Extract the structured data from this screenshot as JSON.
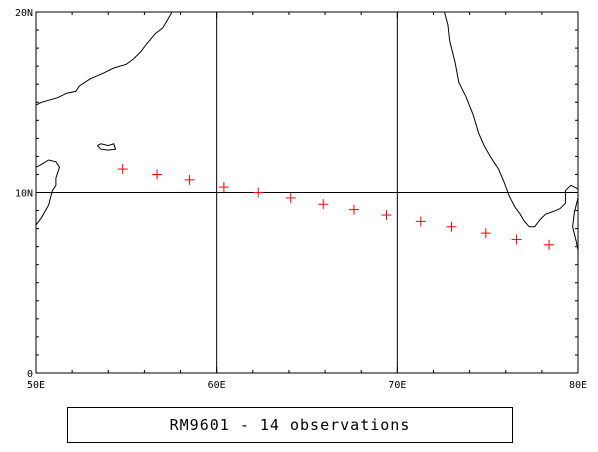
{
  "caption": "RM9601 - 14 observations",
  "chart_data": {
    "type": "scatter",
    "projection": "lon-lat",
    "xlim": [
      50,
      80
    ],
    "ylim": [
      0,
      20
    ],
    "x_ticks": [
      50,
      60,
      70,
      80
    ],
    "x_tick_labels": [
      "50E",
      "60E",
      "70E",
      "80E"
    ],
    "y_ticks": [
      0,
      10,
      20
    ],
    "y_tick_labels": [
      "0",
      "10N",
      "20N"
    ],
    "grid": true,
    "grid_lines": {
      "lon": [
        60,
        70
      ],
      "lat": [
        10
      ]
    },
    "marker": "plus",
    "marker_color": "#ff0000",
    "coastline_color": "#000000",
    "points": [
      {
        "lon": 54.8,
        "lat": 11.3
      },
      {
        "lon": 56.7,
        "lat": 11.0
      },
      {
        "lon": 58.5,
        "lat": 10.7
      },
      {
        "lon": 60.4,
        "lat": 10.3
      },
      {
        "lon": 62.3,
        "lat": 10.0
      },
      {
        "lon": 64.1,
        "lat": 9.7
      },
      {
        "lon": 65.9,
        "lat": 9.35
      },
      {
        "lon": 67.6,
        "lat": 9.05
      },
      {
        "lon": 69.4,
        "lat": 8.75
      },
      {
        "lon": 71.3,
        "lat": 8.4
      },
      {
        "lon": 73.0,
        "lat": 8.1
      },
      {
        "lon": 74.9,
        "lat": 7.75
      },
      {
        "lon": 76.6,
        "lat": 7.4
      },
      {
        "lon": 78.4,
        "lat": 7.1
      }
    ],
    "coastlines": {
      "arabia": [
        [
          50,
          14.85
        ],
        [
          50.3,
          15.0
        ],
        [
          51.2,
          15.25
        ],
        [
          51.7,
          15.5
        ],
        [
          52.2,
          15.6
        ],
        [
          52.4,
          15.9
        ],
        [
          53.0,
          16.3
        ],
        [
          53.7,
          16.6
        ],
        [
          54.3,
          16.9
        ],
        [
          55.0,
          17.1
        ],
        [
          55.4,
          17.4
        ],
        [
          55.8,
          17.8
        ],
        [
          56.1,
          18.2
        ],
        [
          56.6,
          18.8
        ],
        [
          57.0,
          19.1
        ],
        [
          57.3,
          19.6
        ],
        [
          57.7,
          20.3
        ],
        [
          57.9,
          20.9
        ],
        [
          58.3,
          21.4
        ],
        [
          58.6,
          22.1
        ]
      ],
      "socotra": [
        [
          53.4,
          12.6
        ],
        [
          53.6,
          12.7
        ],
        [
          54.0,
          12.6
        ],
        [
          54.3,
          12.7
        ],
        [
          54.4,
          12.4
        ],
        [
          54.0,
          12.35
        ],
        [
          53.6,
          12.4
        ],
        [
          53.4,
          12.6
        ]
      ],
      "somalia": [
        [
          50,
          8.2
        ],
        [
          50.3,
          8.6
        ],
        [
          50.7,
          9.3
        ],
        [
          50.9,
          10.1
        ],
        [
          51.1,
          10.4
        ],
        [
          51.1,
          10.8
        ],
        [
          51.3,
          11.4
        ],
        [
          51.1,
          11.7
        ],
        [
          50.7,
          11.8
        ],
        [
          50.2,
          11.5
        ],
        [
          50,
          11.4
        ]
      ],
      "india": [
        [
          72.4,
          21.5
        ],
        [
          72.5,
          20.4
        ],
        [
          72.8,
          19.3
        ],
        [
          72.9,
          18.4
        ],
        [
          73.2,
          17.2
        ],
        [
          73.4,
          16.1
        ],
        [
          73.8,
          15.3
        ],
        [
          74.2,
          14.3
        ],
        [
          74.5,
          13.3
        ],
        [
          74.8,
          12.6
        ],
        [
          75.2,
          11.9
        ],
        [
          75.6,
          11.3
        ],
        [
          75.9,
          10.6
        ],
        [
          76.2,
          9.8
        ],
        [
          76.5,
          9.2
        ],
        [
          76.8,
          8.8
        ],
        [
          77.0,
          8.45
        ],
        [
          77.3,
          8.1
        ],
        [
          77.6,
          8.1
        ],
        [
          77.9,
          8.5
        ],
        [
          78.2,
          8.8
        ],
        [
          78.5,
          8.9
        ],
        [
          79.0,
          9.1
        ],
        [
          79.3,
          9.4
        ],
        [
          79.3,
          10.1
        ],
        [
          79.6,
          10.4
        ],
        [
          79.8,
          10.3
        ],
        [
          80,
          10.2
        ]
      ],
      "srilanka": [
        [
          80,
          9.7
        ],
        [
          79.8,
          8.9
        ],
        [
          79.7,
          8.1
        ],
        [
          79.9,
          7.3
        ],
        [
          80,
          6.8
        ]
      ]
    }
  }
}
